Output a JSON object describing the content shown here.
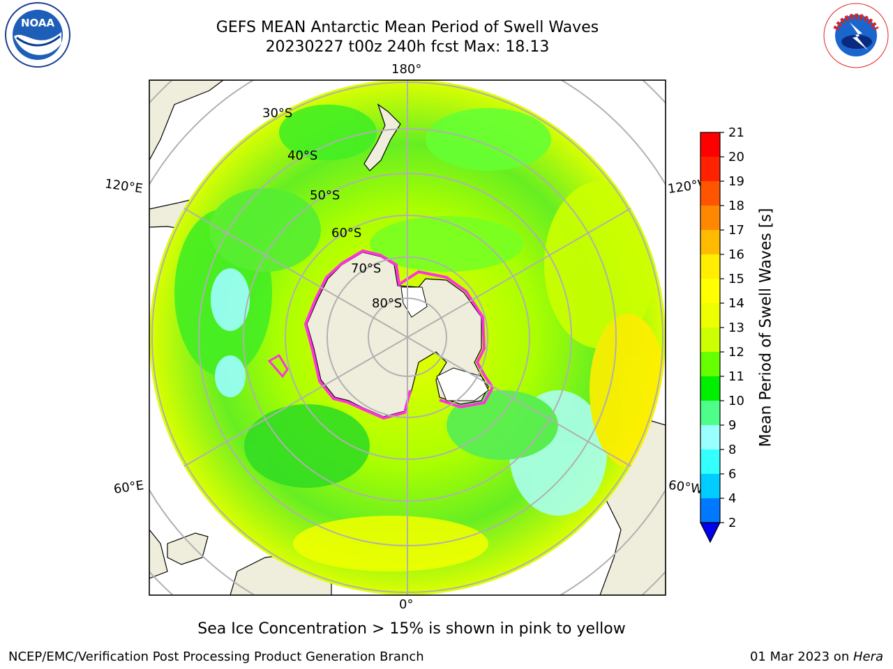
{
  "header": {
    "title_line1": "GEFS MEAN Antarctic Mean Period of Swell Waves",
    "title_line2": "20230227 t00z 240h fcst   Max: 18.13"
  },
  "logos": {
    "left": {
      "icon": "noaa-logo-icon",
      "text": "NOAA",
      "ring_text": "NATIONAL OCEANIC AND ATMOSPHERIC ADMINISTRATION · U.S. DEPARTMENT OF COMMERCE"
    },
    "right": {
      "icon": "nws-logo-icon",
      "ring_text": "NATIONAL WEATHER SERVICE"
    }
  },
  "map": {
    "projection": "south-polar-stereographic",
    "longitude_labels": [
      "180°",
      "120°E",
      "120°W",
      "60°E",
      "60°W",
      "0°"
    ],
    "latitude_labels": [
      "30°S",
      "40°S",
      "50°S",
      "60°S",
      "70°S",
      "80°S"
    ],
    "colors": {
      "land": "#efeedc",
      "ice_edge": "#ff33dd",
      "gridline": "#b0b0b0"
    }
  },
  "colorbar": {
    "label": "Mean Period of Swell Waves [s]",
    "ticks": [
      "2",
      "4",
      "6",
      "8",
      "9",
      "10",
      "11",
      "12",
      "13",
      "14",
      "15",
      "16",
      "17",
      "18",
      "19",
      "20",
      "21"
    ],
    "colors": [
      "#0078ff",
      "#00ccff",
      "#33ffff",
      "#99ffff",
      "#4dff88",
      "#00ee00",
      "#66ff00",
      "#ccff00",
      "#eeff00",
      "#ffff00",
      "#ffee00",
      "#ffbb00",
      "#ff8800",
      "#ff5500",
      "#ff2200",
      "#ff0000"
    ],
    "under_color": "#0000ee"
  },
  "note": "Sea Ice Concentration > 15% is shown in pink to yellow",
  "footer": {
    "left": "NCEP/EMC/Verification Post Processing Product Generation Branch",
    "right_date": "01 Mar 2023 on ",
    "right_host": "Hera"
  }
}
